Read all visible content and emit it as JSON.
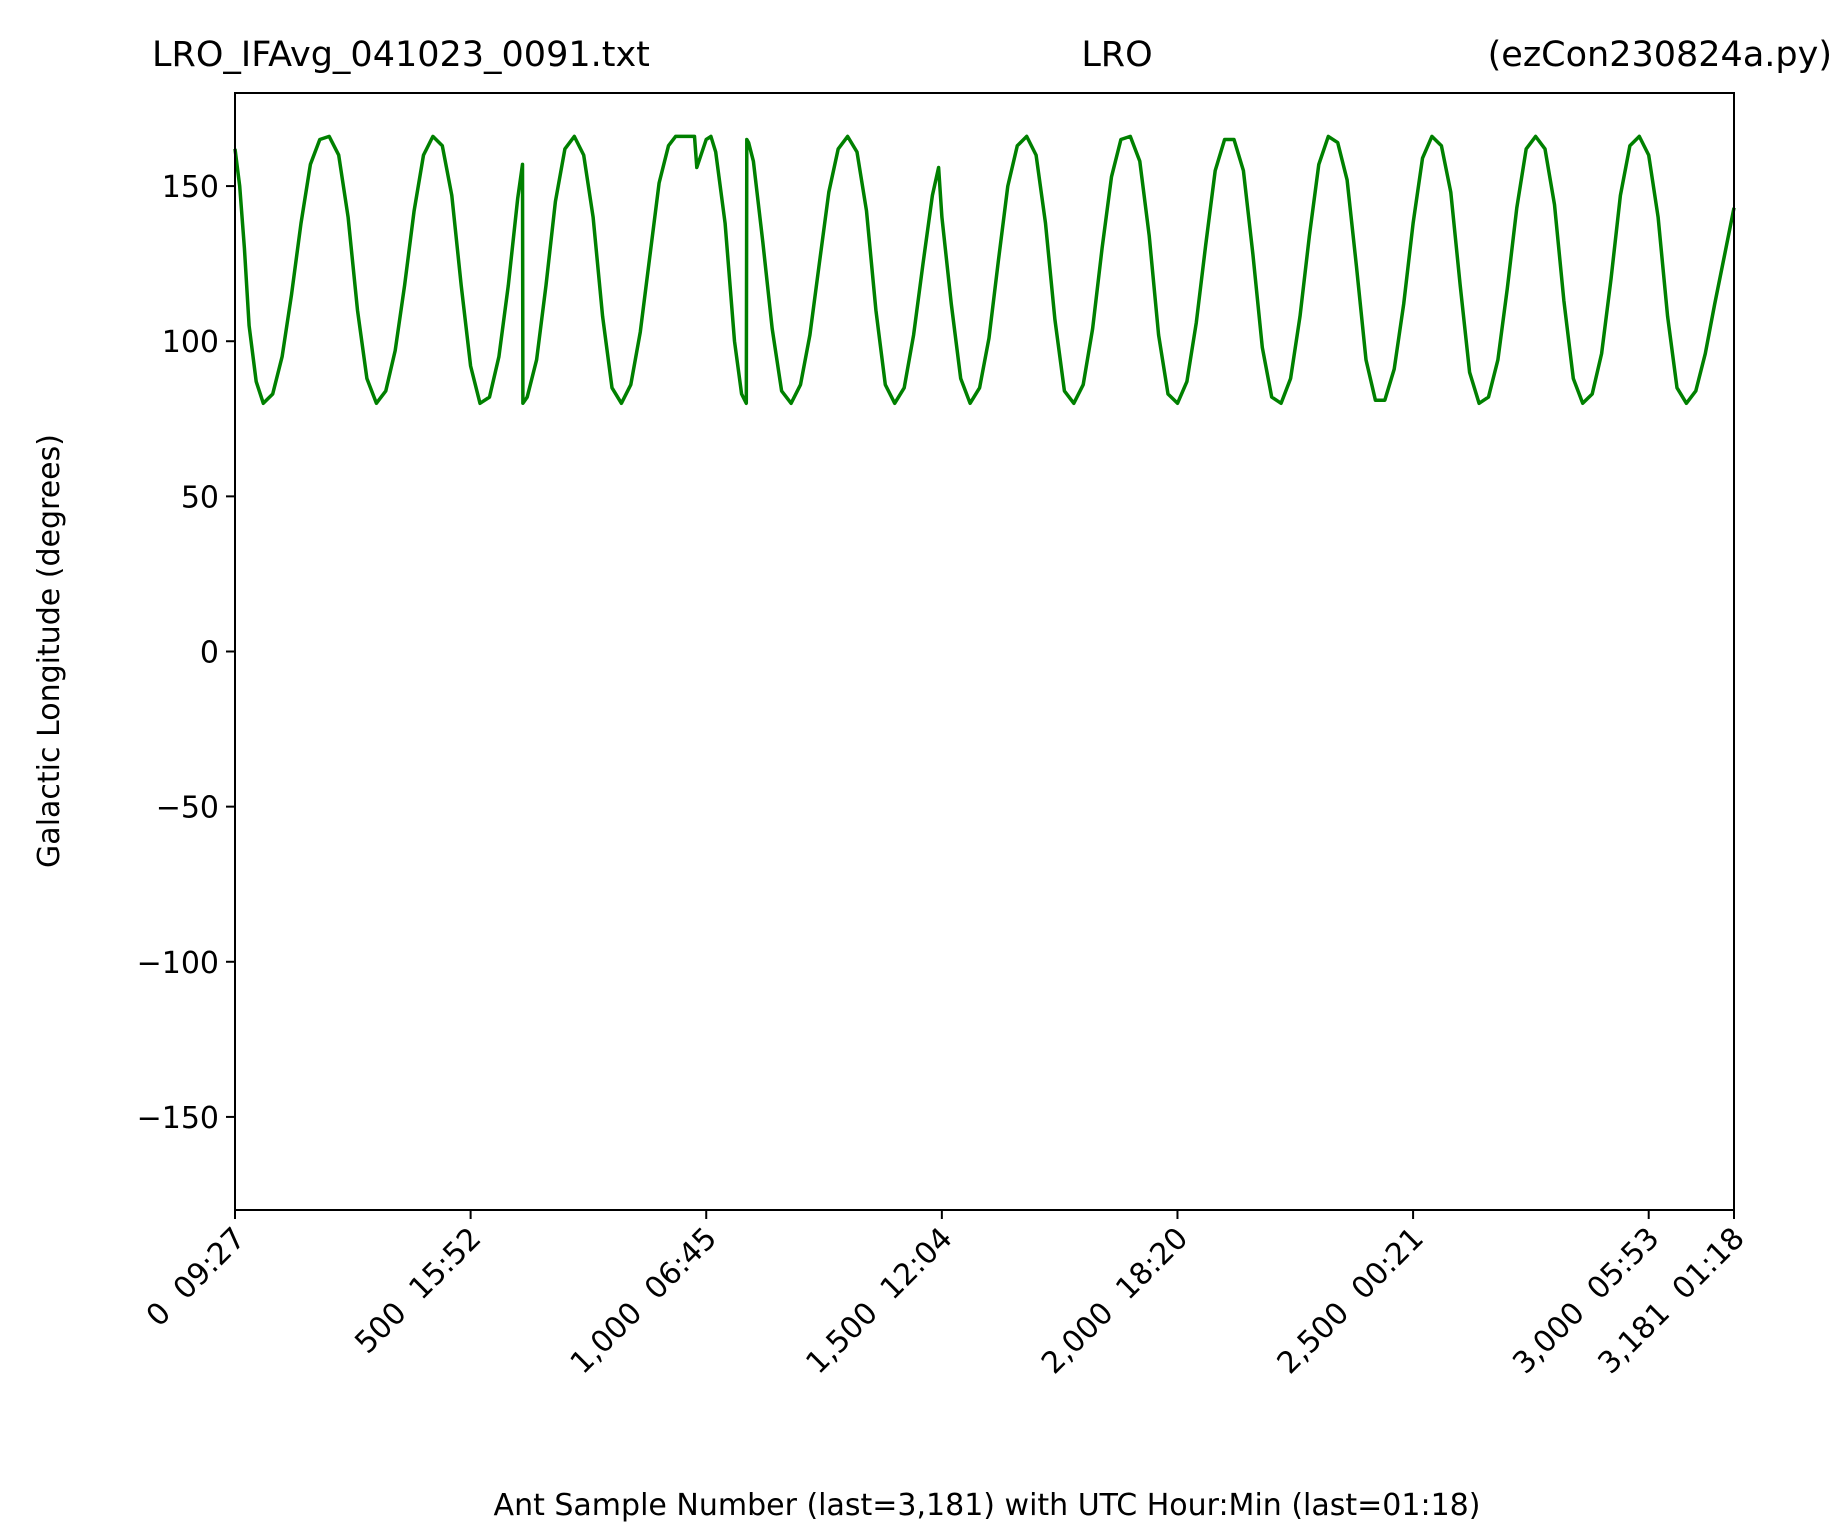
{
  "chart_data": {
    "type": "line",
    "title_left": "LRO_IFAvg_041023_0091.txt",
    "title_center": "LRO",
    "title_right": "(ezCon230824a.py)",
    "xlabel": "Ant Sample Number (last=3,181) with UTC Hour:Min (last=01:18)",
    "ylabel": "Galactic Longitude (degrees)",
    "xlim": [
      0,
      3181
    ],
    "ylim": [
      -180,
      180
    ],
    "line_color": "#008000",
    "grid": false,
    "yticks": [
      {
        "value": 150,
        "label": "150"
      },
      {
        "value": 100,
        "label": "100"
      },
      {
        "value": 50,
        "label": "50"
      },
      {
        "value": 0,
        "label": "0"
      },
      {
        "value": -50,
        "label": "−50"
      },
      {
        "value": -100,
        "label": "−100"
      },
      {
        "value": -150,
        "label": "−150"
      }
    ],
    "xticks": [
      {
        "value": 0,
        "label": "0  09:27"
      },
      {
        "value": 500,
        "label": "500  15:52"
      },
      {
        "value": 1000,
        "label": "1,000  06:45"
      },
      {
        "value": 1500,
        "label": "1,500  12:04"
      },
      {
        "value": 2000,
        "label": "2,000  18:20"
      },
      {
        "value": 2500,
        "label": "2,500  00:21"
      },
      {
        "value": 3000,
        "label": "3,000  05:53"
      },
      {
        "value": 3181,
        "label": "3,181  01:18"
      }
    ],
    "series": [
      {
        "points": [
          [
            0,
            162
          ],
          [
            10,
            150
          ],
          [
            20,
            130
          ],
          [
            30,
            105
          ],
          [
            45,
            87
          ],
          [
            60,
            80
          ],
          [
            80,
            83
          ],
          [
            100,
            95
          ],
          [
            120,
            115
          ],
          [
            140,
            138
          ],
          [
            160,
            157
          ],
          [
            180,
            165
          ],
          [
            200,
            166
          ],
          [
            220,
            160
          ],
          [
            240,
            140
          ],
          [
            260,
            110
          ],
          [
            280,
            88
          ],
          [
            300,
            80
          ],
          [
            320,
            84
          ],
          [
            340,
            97
          ],
          [
            360,
            118
          ],
          [
            380,
            142
          ],
          [
            400,
            160
          ],
          [
            420,
            166
          ],
          [
            440,
            163
          ],
          [
            460,
            147
          ],
          [
            480,
            118
          ],
          [
            500,
            92
          ],
          [
            520,
            80
          ],
          [
            540,
            82
          ],
          [
            560,
            95
          ],
          [
            580,
            118
          ],
          [
            600,
            146
          ],
          [
            610,
            157
          ],
          [
            611,
            80
          ],
          [
            620,
            82
          ],
          [
            640,
            94
          ],
          [
            660,
            118
          ],
          [
            680,
            145
          ],
          [
            700,
            162
          ],
          [
            720,
            166
          ],
          [
            740,
            160
          ],
          [
            760,
            140
          ],
          [
            780,
            108
          ],
          [
            800,
            85
          ],
          [
            820,
            80
          ],
          [
            840,
            86
          ],
          [
            860,
            103
          ],
          [
            880,
            127
          ],
          [
            900,
            151
          ],
          [
            920,
            163
          ],
          [
            935,
            166
          ],
          [
            975,
            166
          ],
          [
            980,
            156
          ],
          [
            1000,
            165
          ],
          [
            1010,
            166
          ],
          [
            1020,
            161
          ],
          [
            1040,
            138
          ],
          [
            1060,
            100
          ],
          [
            1075,
            83
          ],
          [
            1085,
            80
          ],
          [
            1086,
            165
          ],
          [
            1090,
            164
          ],
          [
            1100,
            158
          ],
          [
            1120,
            132
          ],
          [
            1140,
            104
          ],
          [
            1160,
            84
          ],
          [
            1180,
            80
          ],
          [
            1200,
            86
          ],
          [
            1220,
            102
          ],
          [
            1240,
            125
          ],
          [
            1260,
            148
          ],
          [
            1280,
            162
          ],
          [
            1300,
            166
          ],
          [
            1320,
            161
          ],
          [
            1340,
            142
          ],
          [
            1360,
            110
          ],
          [
            1380,
            86
          ],
          [
            1400,
            80
          ],
          [
            1420,
            85
          ],
          [
            1440,
            102
          ],
          [
            1460,
            125
          ],
          [
            1480,
            147
          ],
          [
            1493,
            156
          ],
          [
            1500,
            140
          ],
          [
            1520,
            112
          ],
          [
            1540,
            88
          ],
          [
            1560,
            80
          ],
          [
            1580,
            85
          ],
          [
            1600,
            101
          ],
          [
            1620,
            126
          ],
          [
            1640,
            150
          ],
          [
            1660,
            163
          ],
          [
            1680,
            166
          ],
          [
            1700,
            160
          ],
          [
            1720,
            138
          ],
          [
            1740,
            107
          ],
          [
            1760,
            84
          ],
          [
            1780,
            80
          ],
          [
            1800,
            86
          ],
          [
            1820,
            104
          ],
          [
            1840,
            130
          ],
          [
            1860,
            153
          ],
          [
            1880,
            165
          ],
          [
            1900,
            166
          ],
          [
            1920,
            158
          ],
          [
            1940,
            134
          ],
          [
            1960,
            102
          ],
          [
            1980,
            83
          ],
          [
            2000,
            80
          ],
          [
            2020,
            87
          ],
          [
            2040,
            106
          ],
          [
            2060,
            131
          ],
          [
            2080,
            155
          ],
          [
            2100,
            165
          ],
          [
            2120,
            165
          ],
          [
            2140,
            155
          ],
          [
            2160,
            128
          ],
          [
            2180,
            98
          ],
          [
            2200,
            82
          ],
          [
            2220,
            80
          ],
          [
            2240,
            88
          ],
          [
            2260,
            108
          ],
          [
            2280,
            134
          ],
          [
            2300,
            157
          ],
          [
            2320,
            166
          ],
          [
            2340,
            164
          ],
          [
            2360,
            152
          ],
          [
            2380,
            124
          ],
          [
            2400,
            94
          ],
          [
            2420,
            81
          ],
          [
            2440,
            81
          ],
          [
            2460,
            91
          ],
          [
            2480,
            112
          ],
          [
            2500,
            138
          ],
          [
            2520,
            159
          ],
          [
            2540,
            166
          ],
          [
            2560,
            163
          ],
          [
            2580,
            148
          ],
          [
            2600,
            118
          ],
          [
            2620,
            90
          ],
          [
            2640,
            80
          ],
          [
            2660,
            82
          ],
          [
            2680,
            94
          ],
          [
            2700,
            117
          ],
          [
            2720,
            143
          ],
          [
            2740,
            162
          ],
          [
            2760,
            166
          ],
          [
            2780,
            162
          ],
          [
            2800,
            144
          ],
          [
            2820,
            113
          ],
          [
            2840,
            88
          ],
          [
            2860,
            80
          ],
          [
            2880,
            83
          ],
          [
            2900,
            96
          ],
          [
            2920,
            120
          ],
          [
            2940,
            147
          ],
          [
            2960,
            163
          ],
          [
            2980,
            166
          ],
          [
            3000,
            160
          ],
          [
            3020,
            140
          ],
          [
            3040,
            108
          ],
          [
            3060,
            85
          ],
          [
            3080,
            80
          ],
          [
            3100,
            84
          ],
          [
            3120,
            96
          ],
          [
            3140,
            112
          ],
          [
            3160,
            127
          ],
          [
            3181,
            143
          ]
        ]
      }
    ]
  }
}
